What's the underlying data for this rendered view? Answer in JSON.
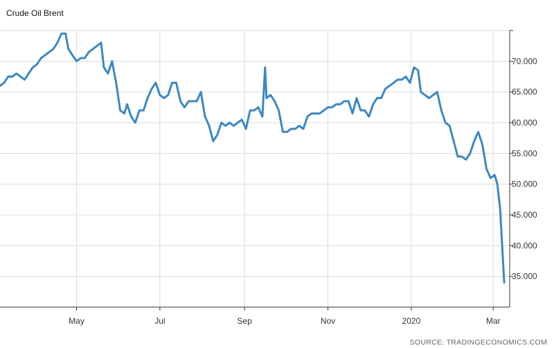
{
  "title": "Crude Oil Brent",
  "source": "SOURCE: TRADINGECONOMICS.COM",
  "colors": {
    "line": "#3b88c3",
    "grid": "#dcdcdc",
    "axis": "#333333"
  },
  "chart_data": {
    "type": "line",
    "title": "Crude Oil Brent",
    "xlabel": "",
    "ylabel": "",
    "grid": true,
    "y_axis_side": "right",
    "ylim": [
      30,
      75
    ],
    "xlim": [
      "2019-03-06",
      "2020-03-13"
    ],
    "y_ticks": [
      35,
      40,
      45,
      50,
      55,
      60,
      65,
      70
    ],
    "y_tick_labels": [
      "35.000",
      "40.000",
      "45.000",
      "50.000",
      "55.000",
      "60.000",
      "65.000",
      "70.000"
    ],
    "x_ticks": [
      "2019-05-01",
      "2019-07-01",
      "2019-09-01",
      "2019-11-01",
      "2020-01-01",
      "2020-03-01"
    ],
    "x_tick_labels": [
      "May",
      "Jul",
      "Sep",
      "Nov",
      "2020",
      "Mar"
    ],
    "series": [
      {
        "x": [
          "2019-03-06",
          "2019-03-09",
          "2019-03-12",
          "2019-03-15",
          "2019-03-18",
          "2019-03-21",
          "2019-03-24",
          "2019-03-27",
          "2019-03-30",
          "2019-04-02",
          "2019-04-05",
          "2019-04-08",
          "2019-04-11",
          "2019-04-14",
          "2019-04-17",
          "2019-04-20",
          "2019-04-23",
          "2019-04-25",
          "2019-04-28",
          "2019-05-01",
          "2019-05-04",
          "2019-05-07",
          "2019-05-10",
          "2019-05-13",
          "2019-05-16",
          "2019-05-19",
          "2019-05-21",
          "2019-05-24",
          "2019-05-27",
          "2019-05-30",
          "2019-06-02",
          "2019-06-05",
          "2019-06-07",
          "2019-06-10",
          "2019-06-13",
          "2019-06-16",
          "2019-06-19",
          "2019-06-22",
          "2019-06-25",
          "2019-06-28",
          "2019-07-01",
          "2019-07-04",
          "2019-07-07",
          "2019-07-10",
          "2019-07-13",
          "2019-07-16",
          "2019-07-19",
          "2019-07-22",
          "2019-07-25",
          "2019-07-28",
          "2019-07-31",
          "2019-08-03",
          "2019-08-06",
          "2019-08-09",
          "2019-08-12",
          "2019-08-15",
          "2019-08-18",
          "2019-08-21",
          "2019-08-24",
          "2019-08-27",
          "2019-08-30",
          "2019-09-02",
          "2019-09-05",
          "2019-09-08",
          "2019-09-11",
          "2019-09-14",
          "2019-09-16",
          "2019-09-17",
          "2019-09-20",
          "2019-09-23",
          "2019-09-26",
          "2019-09-29",
          "2019-10-02",
          "2019-10-05",
          "2019-10-08",
          "2019-10-11",
          "2019-10-14",
          "2019-10-17",
          "2019-10-20",
          "2019-10-23",
          "2019-10-26",
          "2019-10-29",
          "2019-11-01",
          "2019-11-04",
          "2019-11-07",
          "2019-11-10",
          "2019-11-13",
          "2019-11-16",
          "2019-11-19",
          "2019-11-22",
          "2019-11-25",
          "2019-11-28",
          "2019-12-01",
          "2019-12-04",
          "2019-12-07",
          "2019-12-10",
          "2019-12-13",
          "2019-12-16",
          "2019-12-19",
          "2019-12-22",
          "2019-12-25",
          "2019-12-28",
          "2019-12-31",
          "2020-01-03",
          "2020-01-06",
          "2020-01-08",
          "2020-01-11",
          "2020-01-14",
          "2020-01-17",
          "2020-01-20",
          "2020-01-23",
          "2020-01-26",
          "2020-01-29",
          "2020-02-01",
          "2020-02-04",
          "2020-02-07",
          "2020-02-10",
          "2020-02-13",
          "2020-02-16",
          "2020-02-19",
          "2020-02-22",
          "2020-02-25",
          "2020-02-28",
          "2020-03-02",
          "2020-03-04",
          "2020-03-06",
          "2020-03-09"
        ],
        "values": [
          66,
          66.5,
          67.5,
          67.5,
          68,
          67.5,
          67,
          68,
          69,
          69.5,
          70.5,
          71,
          71.5,
          72,
          73,
          74.5,
          74.5,
          72,
          71,
          70,
          70.5,
          70.5,
          71.5,
          72,
          72.5,
          73,
          69,
          68,
          70,
          66.5,
          62,
          61.5,
          63,
          61,
          60,
          62,
          62,
          64,
          65.5,
          66.5,
          64.5,
          64,
          64.5,
          66.5,
          66.5,
          63.5,
          62.5,
          63.5,
          63.5,
          63.5,
          65,
          61,
          59.5,
          57,
          58,
          60,
          59.5,
          60,
          59.5,
          60,
          60.5,
          59,
          62,
          62,
          62.5,
          61,
          69,
          64,
          64.5,
          63.5,
          62,
          58.5,
          58.5,
          59,
          59,
          59.5,
          59,
          61,
          61.5,
          61.5,
          61.5,
          62,
          62.5,
          62.5,
          63,
          63,
          63.5,
          63.5,
          61.5,
          64,
          62,
          62,
          61,
          63,
          64,
          64,
          65.5,
          66,
          66.5,
          67,
          67,
          67.5,
          66.5,
          69,
          68.5,
          65,
          64.5,
          64,
          64.5,
          65,
          62,
          60,
          59.5,
          57,
          54.5,
          54.5,
          54,
          55,
          57,
          58.5,
          56.5,
          52.5,
          51,
          51.5,
          50,
          46,
          34
        ]
      }
    ]
  }
}
